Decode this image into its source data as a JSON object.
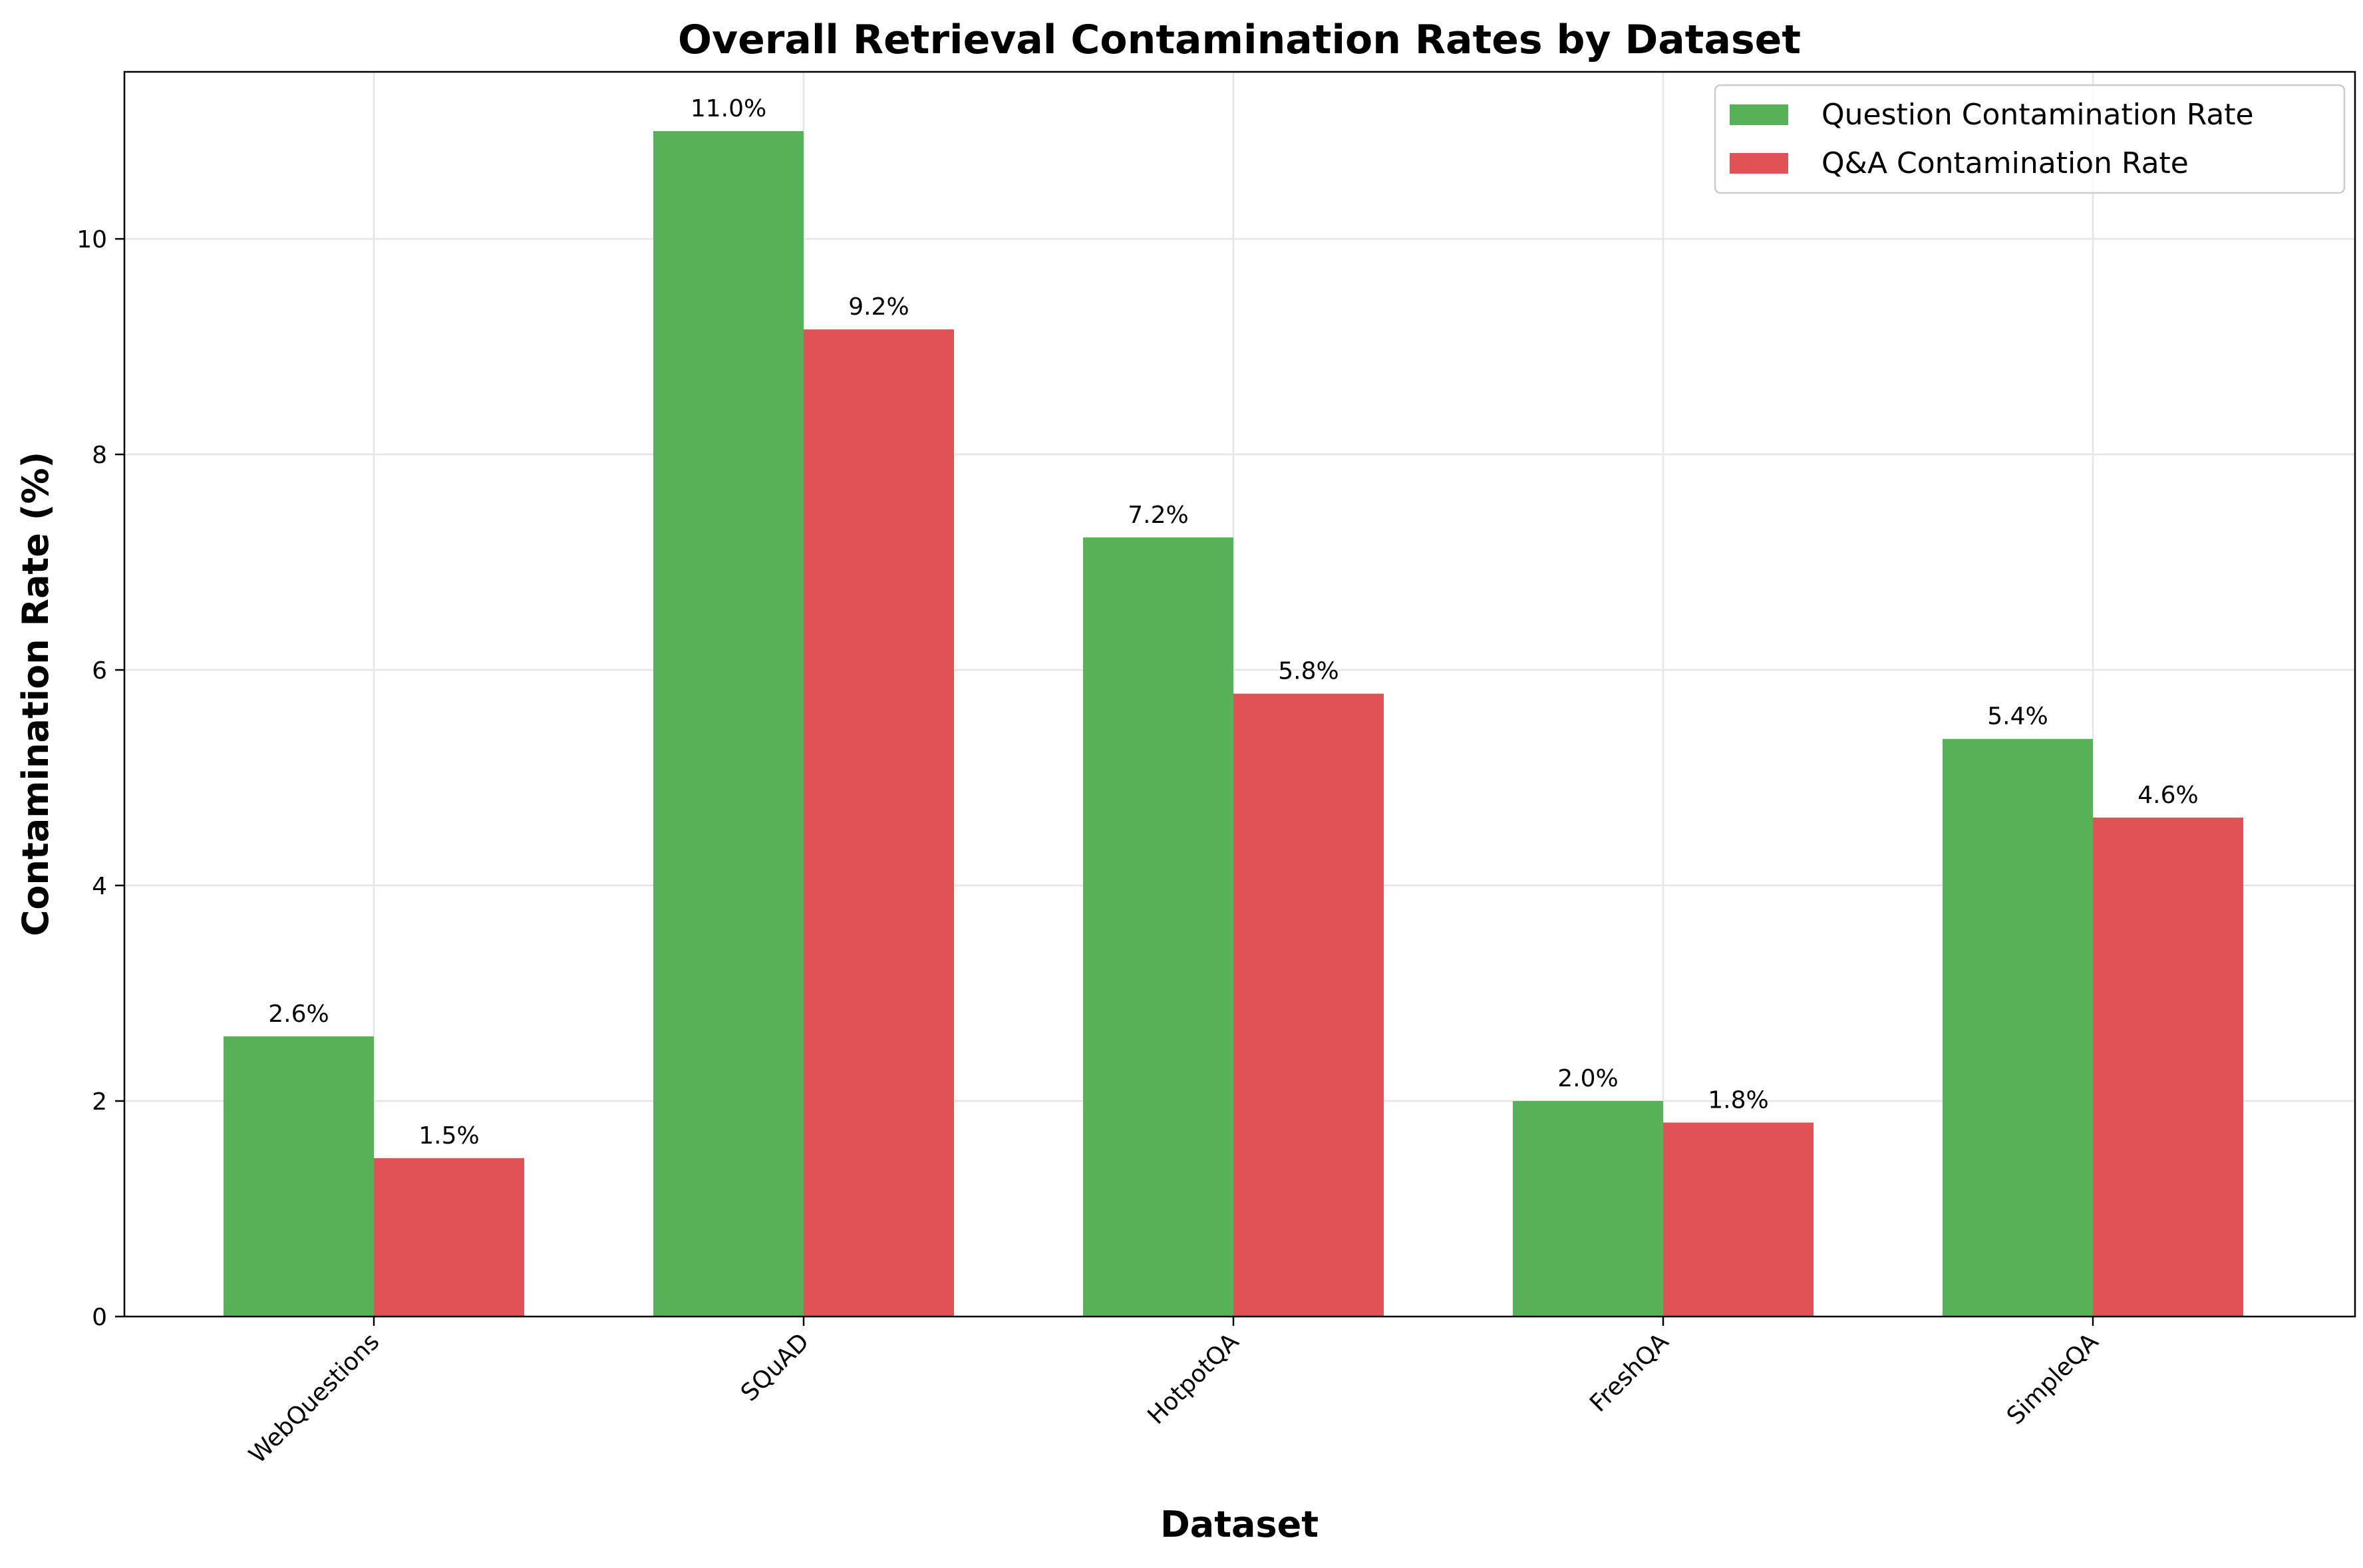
{
  "chart_data": {
    "type": "bar",
    "title": "Overall Retrieval Contamination Rates by Dataset",
    "xlabel": "Dataset",
    "ylabel": "Contamination Rate (%)",
    "categories": [
      "WebQuestions",
      "SQuAD",
      "HotpotQA",
      "FreshQA",
      "SimpleQA"
    ],
    "series": [
      {
        "name": "Question Contamination Rate",
        "color": "#58b358",
        "values": [
          2.6,
          11.0,
          7.23,
          2.0,
          5.36
        ],
        "labels": [
          "2.6%",
          "11.0%",
          "7.2%",
          "2.0%",
          "5.4%"
        ]
      },
      {
        "name": "Q&A Contamination Rate",
        "color": "#df5255",
        "values": [
          1.47,
          9.16,
          5.78,
          1.8,
          4.63
        ],
        "labels": [
          "1.5%",
          "9.2%",
          "5.8%",
          "1.8%",
          "4.6%"
        ]
      }
    ],
    "ylim": [
      0,
      11.55
    ],
    "yticks": [
      0,
      2,
      4,
      6,
      8,
      10
    ],
    "grid": true,
    "legend_position": "top-right"
  }
}
